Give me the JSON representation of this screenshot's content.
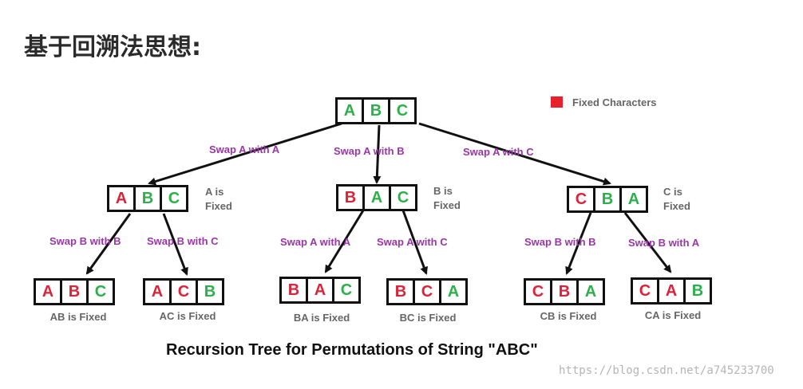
{
  "heading": "基于回溯法思想:",
  "legend": {
    "label": "Fixed Characters",
    "color": "#e8202a"
  },
  "colors": {
    "fixed": "#d9243a",
    "free": "#2db04b",
    "edge_label": "#9a36a8"
  },
  "caption": "Recursion Tree for Permutations of String \"ABC\"",
  "watermark": "https://blog.csdn.net/a745233700",
  "tree": {
    "root": {
      "cells": [
        "A",
        "B",
        "C"
      ],
      "fixed": [
        false,
        false,
        false
      ]
    },
    "level1": [
      {
        "edge": "Swap A with A",
        "cells": [
          "A",
          "B",
          "C"
        ],
        "fixed": [
          true,
          false,
          false
        ],
        "note": [
          "A is",
          "Fixed"
        ]
      },
      {
        "edge": "Swap A with B",
        "cells": [
          "B",
          "A",
          "C"
        ],
        "fixed": [
          true,
          false,
          false
        ],
        "note": [
          "B is",
          "Fixed"
        ]
      },
      {
        "edge": "Swap A with C",
        "cells": [
          "C",
          "B",
          "A"
        ],
        "fixed": [
          true,
          false,
          false
        ],
        "note": [
          "C is",
          "Fixed"
        ]
      }
    ],
    "leaves": [
      {
        "edge": "Swap B with B",
        "cells": [
          "A",
          "B",
          "C"
        ],
        "fixed": [
          true,
          true,
          false
        ],
        "label": "AB is Fixed"
      },
      {
        "edge": "Swap B with C",
        "cells": [
          "A",
          "C",
          "B"
        ],
        "fixed": [
          true,
          true,
          false
        ],
        "label": "AC is Fixed"
      },
      {
        "edge": "Swap A with A",
        "cells": [
          "B",
          "A",
          "C"
        ],
        "fixed": [
          true,
          true,
          false
        ],
        "label": "BA is Fixed"
      },
      {
        "edge": "Swap A with C",
        "cells": [
          "B",
          "C",
          "A"
        ],
        "fixed": [
          true,
          true,
          false
        ],
        "label": "BC is Fixed"
      },
      {
        "edge": "Swap B with B",
        "cells": [
          "C",
          "B",
          "A"
        ],
        "fixed": [
          true,
          true,
          false
        ],
        "label": "CB is Fixed"
      },
      {
        "edge": "Swap B with A",
        "cells": [
          "C",
          "A",
          "B"
        ],
        "fixed": [
          true,
          true,
          false
        ],
        "label": "CA is Fixed"
      }
    ]
  }
}
